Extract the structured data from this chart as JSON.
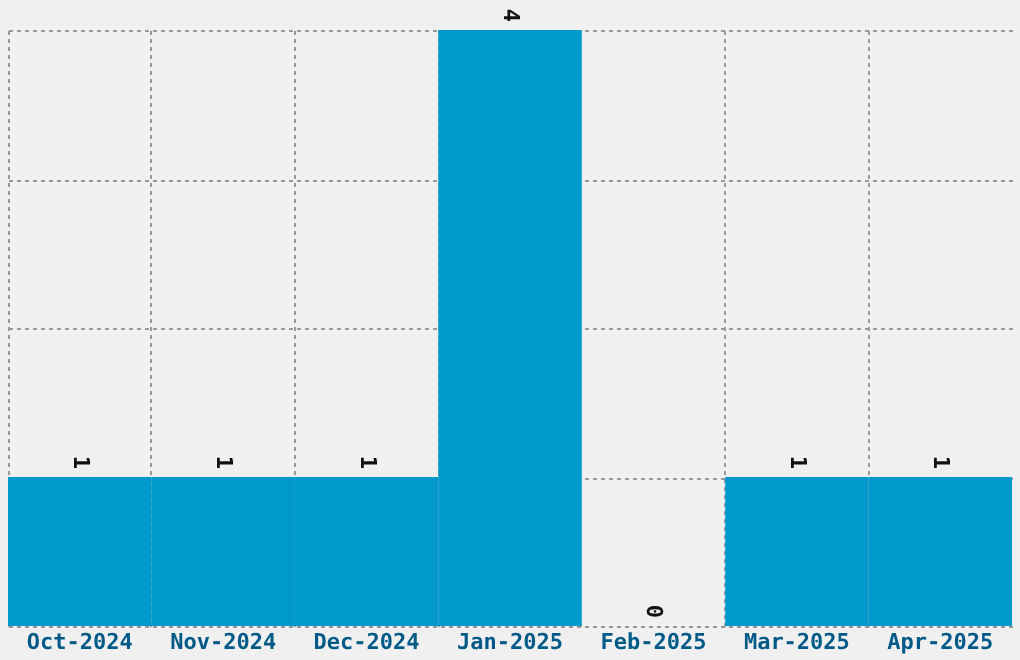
{
  "chart_data": {
    "type": "bar",
    "categories": [
      "Oct-2024",
      "Nov-2024",
      "Dec-2024",
      "Jan-2025",
      "Feb-2025",
      "Mar-2025",
      "Apr-2025"
    ],
    "values": [
      1,
      1,
      1,
      4,
      0,
      1,
      1
    ],
    "color": "#0099cc",
    "data_labels": true,
    "grid": true,
    "tick_labels": "x"
  }
}
